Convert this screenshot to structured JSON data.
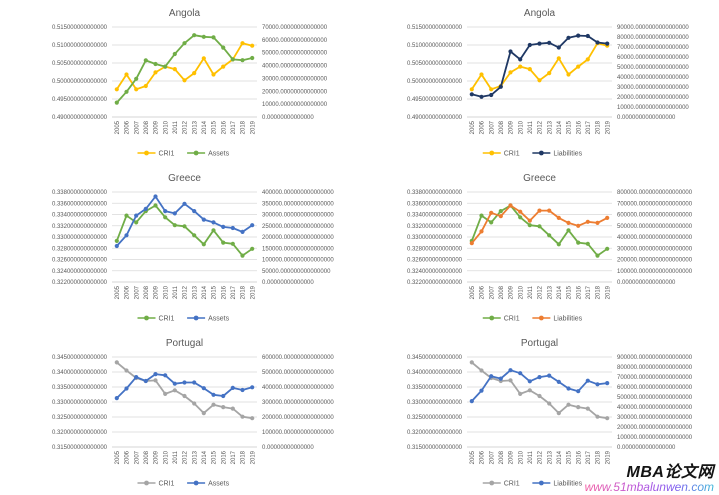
{
  "page": {
    "background": "#ffffff"
  },
  "watermark": {
    "brand": "MBA论文网",
    "url": "www.51mbalunwen.com",
    "brand_color": "#141414",
    "url_gradient": [
      "#f25ca2",
      "#8e5cf0",
      "#3ab7d9"
    ]
  },
  "style": {
    "text_color": "#595959",
    "gridline_color": "#d9d9d9",
    "axis_line_color": "#c6c6c6"
  },
  "chart_data": [
    {
      "type": "line",
      "title": "Angola",
      "categories": [
        "2005",
        "2006",
        "2007",
        "2008",
        "2009",
        "2010",
        "2011",
        "2012",
        "2013",
        "2014",
        "2015",
        "2016",
        "2017",
        "2018",
        "2019"
      ],
      "legend_position": "bottom",
      "grid": true,
      "left_axis": {
        "min": 0.49,
        "max": 0.515,
        "tick_labels": [
          "0.515000000000000",
          "0.510000000000000",
          "0.505000000000000",
          "0.500000000000000",
          "0.495000000000000",
          "0.490000000000000"
        ]
      },
      "right_axis": {
        "min": 0,
        "max": 70000,
        "tick_labels": [
          "70000.00000000000000",
          "60000.00000000000000",
          "50000.00000000000000",
          "40000.00000000000000",
          "30000.00000000000000",
          "20000.00000000000000",
          "10000.00000000000000",
          "0.00000000000000"
        ]
      },
      "series": [
        {
          "name": "CRI1",
          "color": "#FFC000",
          "axis": "left",
          "values": [
            0.4977,
            0.5018,
            0.4977,
            0.4986,
            0.5024,
            0.504,
            0.5033,
            0.5002,
            0.5022,
            0.5063,
            0.5018,
            0.504,
            0.506,
            0.5105,
            0.5098
          ]
        },
        {
          "name": "Assets",
          "color": "#70AD47",
          "axis": "right",
          "values": [
            11200,
            19600,
            29700,
            44000,
            41200,
            39200,
            49000,
            57400,
            63600,
            62400,
            61900,
            54000,
            44800,
            44200,
            45900
          ]
        }
      ]
    },
    {
      "type": "line",
      "title": "Angola",
      "categories": [
        "2005",
        "2006",
        "2007",
        "2008",
        "2009",
        "2010",
        "2011",
        "2012",
        "2013",
        "2014",
        "2015",
        "2016",
        "2017",
        "2018",
        "2019"
      ],
      "legend_position": "bottom",
      "grid": true,
      "left_axis": {
        "min": 0.49,
        "max": 0.515,
        "tick_labels": [
          "0.515000000000000",
          "0.510000000000000",
          "0.505000000000000",
          "0.500000000000000",
          "0.495000000000000",
          "0.490000000000000"
        ]
      },
      "right_axis": {
        "min": 0,
        "max": 90000,
        "tick_labels": [
          "90000.0000000000000000",
          "80000.0000000000000000",
          "70000.0000000000000000",
          "60000.0000000000000000",
          "50000.0000000000000000",
          "40000.0000000000000000",
          "30000.0000000000000000",
          "20000.0000000000000000",
          "10000.0000000000000000",
          "0.0000000000000000"
        ]
      },
      "series": [
        {
          "name": "CRI1",
          "color": "#FFC000",
          "axis": "left",
          "values": [
            0.4977,
            0.5018,
            0.4977,
            0.4986,
            0.5024,
            0.504,
            0.5033,
            0.5002,
            0.5022,
            0.5063,
            0.5018,
            0.504,
            0.506,
            0.5105,
            0.5098
          ]
        },
        {
          "name": "Liabilities",
          "color": "#1F3864",
          "axis": "right",
          "values": [
            22700,
            20200,
            22000,
            30200,
            65500,
            57600,
            72000,
            73400,
            74200,
            69500,
            79200,
            81400,
            81000,
            74500,
            73400
          ]
        }
      ]
    },
    {
      "type": "line",
      "title": "Greece",
      "categories": [
        "2005",
        "2006",
        "2007",
        "2008",
        "2009",
        "2010",
        "2011",
        "2012",
        "2013",
        "2014",
        "2015",
        "2016",
        "2017",
        "2018",
        "2019"
      ],
      "legend_position": "bottom",
      "grid": true,
      "left_axis": {
        "min": 0.322,
        "max": 0.338,
        "tick_labels": [
          "0.338000000000000",
          "0.336000000000000",
          "0.334000000000000",
          "0.332000000000000",
          "0.330000000000000",
          "0.328000000000000",
          "0.326000000000000",
          "0.324000000000000",
          "0.322000000000000"
        ]
      },
      "right_axis": {
        "min": 0,
        "max": 400000,
        "tick_labels": [
          "400000.000000000000000",
          "350000.000000000000000",
          "300000.000000000000000",
          "250000.000000000000000",
          "200000.000000000000000",
          "150000.000000000000000",
          "100000.000000000000000",
          "50000.000000000000000",
          "0.00000000000000"
        ]
      },
      "series": [
        {
          "name": "CRI1",
          "color": "#70AD47",
          "axis": "left",
          "values": [
            0.3293,
            0.3338,
            0.3326,
            0.3346,
            0.3356,
            0.3335,
            0.3321,
            0.3319,
            0.3303,
            0.3287,
            0.3312,
            0.329,
            0.3288,
            0.3267,
            0.3279
          ]
        },
        {
          "name": "Assets",
          "color": "#4472C4",
          "axis": "right",
          "values": [
            160000,
            207500,
            295000,
            325000,
            380000,
            315000,
            305000,
            347500,
            315000,
            277500,
            265000,
            245000,
            240000,
            222500,
            252500
          ]
        }
      ]
    },
    {
      "type": "line",
      "title": "Greece",
      "categories": [
        "2005",
        "2006",
        "2007",
        "2008",
        "2009",
        "2010",
        "2011",
        "2012",
        "2013",
        "2014",
        "2015",
        "2016",
        "2017",
        "2018",
        "2019"
      ],
      "legend_position": "bottom",
      "grid": true,
      "left_axis": {
        "min": 0.322,
        "max": 0.338,
        "tick_labels": [
          "0.338000000000000",
          "0.336000000000000",
          "0.334000000000000",
          "0.332000000000000",
          "0.330000000000000",
          "0.328000000000000",
          "0.326000000000000",
          "0.324000000000000",
          "0.322000000000000"
        ]
      },
      "right_axis": {
        "min": 0,
        "max": 800000,
        "tick_labels": [
          "800000.0000000000000000",
          "700000.0000000000000000",
          "600000.0000000000000000",
          "500000.0000000000000000",
          "400000.0000000000000000",
          "300000.0000000000000000",
          "200000.0000000000000000",
          "100000.0000000000000000",
          "0.0000000000000000"
        ]
      },
      "series": [
        {
          "name": "CRI1",
          "color": "#70AD47",
          "axis": "left",
          "values": [
            0.3293,
            0.3338,
            0.3326,
            0.3346,
            0.3356,
            0.3335,
            0.3321,
            0.3319,
            0.3303,
            0.3287,
            0.3312,
            0.329,
            0.3288,
            0.3267,
            0.3279
          ]
        },
        {
          "name": "Liabilities",
          "color": "#ED7D31",
          "axis": "right",
          "values": [
            345000,
            450000,
            615000,
            585000,
            680000,
            625000,
            545000,
            635000,
            635000,
            570000,
            525000,
            500000,
            535000,
            525000,
            570000
          ]
        }
      ]
    },
    {
      "type": "line",
      "title": "Portugal",
      "categories": [
        "2005",
        "2006",
        "2007",
        "2008",
        "2009",
        "2010",
        "2011",
        "2012",
        "2013",
        "2014",
        "2015",
        "2016",
        "2017",
        "2018",
        "2019"
      ],
      "legend_position": "bottom",
      "grid": true,
      "left_axis": {
        "min": 0.315,
        "max": 0.345,
        "tick_labels": [
          "0.345000000000000",
          "0.340000000000000",
          "0.335000000000000",
          "0.330000000000000",
          "0.325000000000000",
          "0.320000000000000",
          "0.315000000000000"
        ]
      },
      "right_axis": {
        "min": 0,
        "max": 600000,
        "tick_labels": [
          "600000.000000000000000",
          "500000.000000000000000",
          "400000.000000000000000",
          "300000.000000000000000",
          "200000.000000000000000",
          "100000.000000000000000",
          "0.00000000000000"
        ]
      },
      "series": [
        {
          "name": "CRI1",
          "color": "#A5A5A5",
          "axis": "left",
          "values": [
            0.3432,
            0.3405,
            0.338,
            0.337,
            0.3372,
            0.3327,
            0.3339,
            0.332,
            0.3295,
            0.3263,
            0.3291,
            0.3283,
            0.3278,
            0.3251,
            0.3246
          ]
        },
        {
          "name": "Assets",
          "color": "#4472C4",
          "axis": "right",
          "values": [
            326000,
            390000,
            466000,
            440000,
            486000,
            478000,
            422000,
            430000,
            430000,
            392000,
            348000,
            340000,
            394000,
            380000,
            398000
          ]
        }
      ]
    },
    {
      "type": "line",
      "title": "Portugal",
      "categories": [
        "2005",
        "2006",
        "2007",
        "2008",
        "2009",
        "2010",
        "2011",
        "2012",
        "2013",
        "2014",
        "2015",
        "2016",
        "2017",
        "2018",
        "2019"
      ],
      "legend_position": "bottom",
      "grid": true,
      "left_axis": {
        "min": 0.315,
        "max": 0.345,
        "tick_labels": [
          "0.345000000000000",
          "0.340000000000000",
          "0.335000000000000",
          "0.330000000000000",
          "0.325000000000000",
          "0.320000000000000",
          "0.315000000000000"
        ]
      },
      "right_axis": {
        "min": 0,
        "max": 900000,
        "tick_labels": [
          "900000.0000000000000000",
          "800000.0000000000000000",
          "700000.0000000000000000",
          "600000.0000000000000000",
          "500000.0000000000000000",
          "400000.0000000000000000",
          "300000.0000000000000000",
          "200000.0000000000000000",
          "100000.0000000000000000",
          "0.0000000000000000"
        ]
      },
      "series": [
        {
          "name": "CRI1",
          "color": "#A5A5A5",
          "axis": "left",
          "values": [
            0.3432,
            0.3405,
            0.338,
            0.337,
            0.3372,
            0.3327,
            0.3339,
            0.332,
            0.3295,
            0.3263,
            0.3291,
            0.3283,
            0.3278,
            0.3251,
            0.3246
          ]
        },
        {
          "name": "Liabilities",
          "color": "#4472C4",
          "axis": "right",
          "values": [
            459000,
            564000,
            708000,
            684000,
            768000,
            738000,
            657000,
            699000,
            714000,
            651000,
            585000,
            558000,
            663000,
            627000,
            639000
          ]
        }
      ]
    }
  ]
}
